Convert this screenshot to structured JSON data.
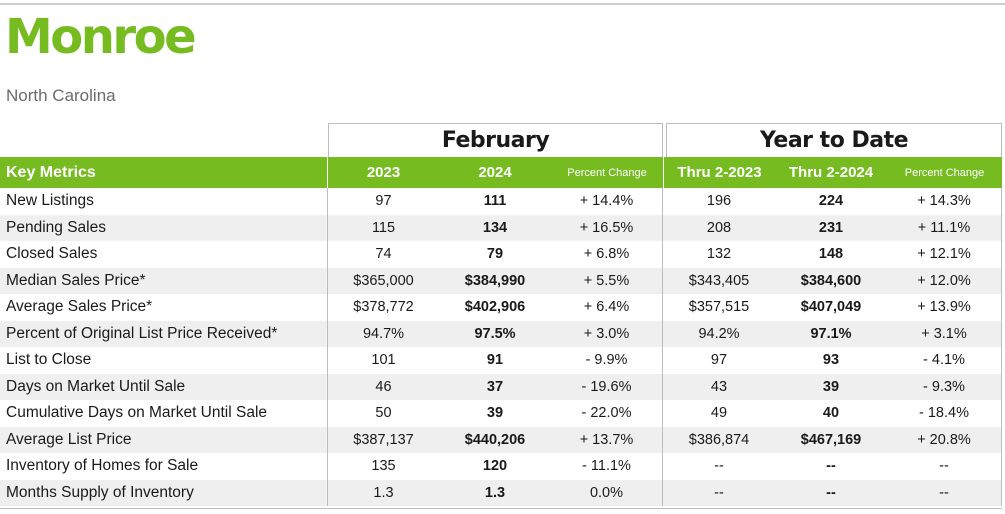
{
  "page": {
    "title": "Monroe",
    "subtitle": "North Carolina"
  },
  "groups": {
    "february": "February",
    "ytd": "Year to Date"
  },
  "header": {
    "key_metrics": "Key Metrics",
    "feb_2023": "2023",
    "feb_2024": "2024",
    "feb_pct": "Percent Change",
    "ytd_2023": "Thru 2-2023",
    "ytd_2024": "Thru 2-2024",
    "ytd_pct": "Percent Change"
  },
  "rows": [
    {
      "metric": "New Listings",
      "feb_2023": "97",
      "feb_2024": "111",
      "feb_pct": "+ 14.4%",
      "ytd_2023": "196",
      "ytd_2024": "224",
      "ytd_pct": "+ 14.3%"
    },
    {
      "metric": "Pending Sales",
      "feb_2023": "115",
      "feb_2024": "134",
      "feb_pct": "+ 16.5%",
      "ytd_2023": "208",
      "ytd_2024": "231",
      "ytd_pct": "+ 11.1%"
    },
    {
      "metric": "Closed Sales",
      "feb_2023": "74",
      "feb_2024": "79",
      "feb_pct": "+ 6.8%",
      "ytd_2023": "132",
      "ytd_2024": "148",
      "ytd_pct": "+ 12.1%"
    },
    {
      "metric": "Median Sales Price*",
      "feb_2023": "$365,000",
      "feb_2024": "$384,990",
      "feb_pct": "+ 5.5%",
      "ytd_2023": "$343,405",
      "ytd_2024": "$384,600",
      "ytd_pct": "+ 12.0%"
    },
    {
      "metric": "Average Sales Price*",
      "feb_2023": "$378,772",
      "feb_2024": "$402,906",
      "feb_pct": "+ 6.4%",
      "ytd_2023": "$357,515",
      "ytd_2024": "$407,049",
      "ytd_pct": "+ 13.9%"
    },
    {
      "metric": "Percent of Original List Price Received*",
      "feb_2023": "94.7%",
      "feb_2024": "97.5%",
      "feb_pct": "+ 3.0%",
      "ytd_2023": "94.2%",
      "ytd_2024": "97.1%",
      "ytd_pct": "+ 3.1%"
    },
    {
      "metric": "List to Close",
      "feb_2023": "101",
      "feb_2024": "91",
      "feb_pct": "- 9.9%",
      "ytd_2023": "97",
      "ytd_2024": "93",
      "ytd_pct": "- 4.1%"
    },
    {
      "metric": "Days on Market Until Sale",
      "feb_2023": "46",
      "feb_2024": "37",
      "feb_pct": "- 19.6%",
      "ytd_2023": "43",
      "ytd_2024": "39",
      "ytd_pct": "- 9.3%"
    },
    {
      "metric": "Cumulative Days on Market Until Sale",
      "feb_2023": "50",
      "feb_2024": "39",
      "feb_pct": "- 22.0%",
      "ytd_2023": "49",
      "ytd_2024": "40",
      "ytd_pct": "- 18.4%"
    },
    {
      "metric": "Average List Price",
      "feb_2023": "$387,137",
      "feb_2024": "$440,206",
      "feb_pct": "+ 13.7%",
      "ytd_2023": "$386,874",
      "ytd_2024": "$467,169",
      "ytd_pct": "+ 20.8%"
    },
    {
      "metric": "Inventory of Homes for Sale",
      "feb_2023": "135",
      "feb_2024": "120",
      "feb_pct": "- 11.1%",
      "ytd_2023": "--",
      "ytd_2024": "--",
      "ytd_pct": "--"
    },
    {
      "metric": "Months Supply of Inventory",
      "feb_2023": "1.3",
      "feb_2024": "1.3",
      "feb_pct": "0.0%",
      "ytd_2023": "--",
      "ytd_2024": "--",
      "ytd_pct": "--"
    }
  ],
  "colors": {
    "accent_green": "#76bc21",
    "row_stripe": "#efefef"
  }
}
